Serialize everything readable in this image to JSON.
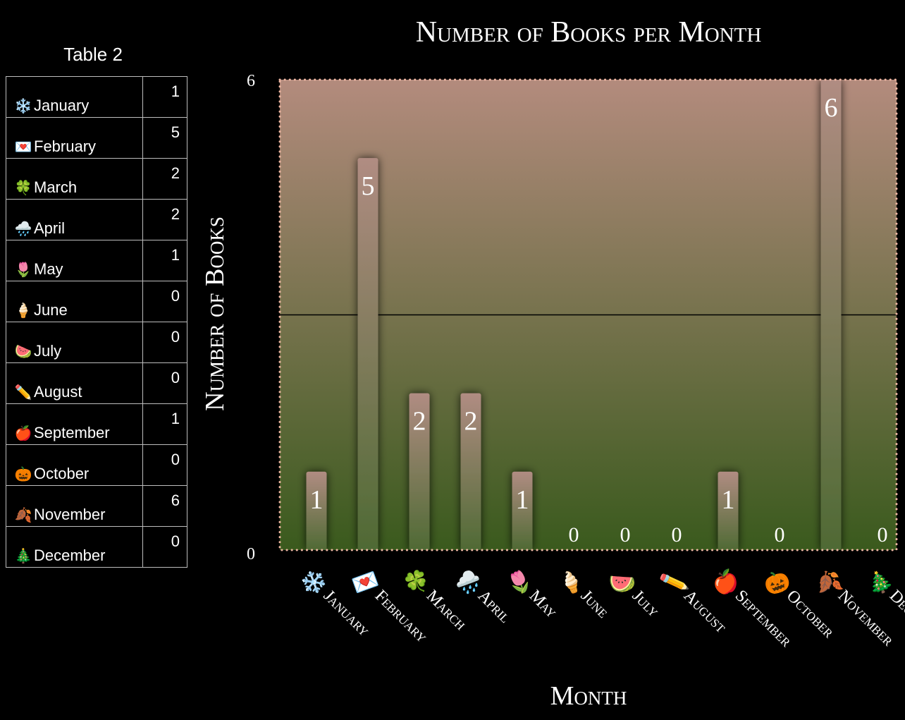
{
  "table": {
    "title": "Table 2",
    "rows": [
      {
        "icon": "snowflake-icon",
        "emoji": "❄️",
        "month": "January",
        "value": "1"
      },
      {
        "icon": "love-letter-icon",
        "emoji": "💌",
        "month": "February",
        "value": "5"
      },
      {
        "icon": "four-leaf-clover-icon",
        "emoji": "🍀",
        "month": "March",
        "value": "2"
      },
      {
        "icon": "rain-cloud-icon",
        "emoji": "🌧️",
        "month": "April",
        "value": "2"
      },
      {
        "icon": "tulip-icon",
        "emoji": "🌷",
        "month": "May",
        "value": "1"
      },
      {
        "icon": "ice-cream-icon",
        "emoji": "🍦",
        "month": "June",
        "value": "0"
      },
      {
        "icon": "watermelon-icon",
        "emoji": "🍉",
        "month": "July",
        "value": "0"
      },
      {
        "icon": "pencil-icon",
        "emoji": "✏️",
        "month": "August",
        "value": "0"
      },
      {
        "icon": "apple-icon",
        "emoji": "🍎",
        "month": "September",
        "value": "1"
      },
      {
        "icon": "jack-o-lantern-icon",
        "emoji": "🎃",
        "month": "October",
        "value": "0"
      },
      {
        "icon": "fallen-leaf-icon",
        "emoji": "🍂",
        "month": "November",
        "value": "6"
      },
      {
        "icon": "christmas-tree-icon",
        "emoji": "🎄",
        "month": "December",
        "value": "0"
      }
    ]
  },
  "chart_data": {
    "type": "bar",
    "title": "Number of Books per Month",
    "xlabel": "Month",
    "ylabel": "Number of Books",
    "categories": [
      "January",
      "February",
      "March",
      "April",
      "May",
      "June",
      "July",
      "August",
      "September",
      "October",
      "November",
      "December"
    ],
    "category_emojis": [
      "❄️",
      "💌",
      "🍀",
      "🌧️",
      "🌷",
      "🍦",
      "🍉",
      "✏️",
      "🍎",
      "🎃",
      "🍂",
      "🎄"
    ],
    "values": [
      1,
      5,
      2,
      2,
      1,
      0,
      0,
      0,
      1,
      0,
      6,
      0
    ],
    "ylim": [
      0,
      6
    ],
    "y_tick_labels": [
      "0",
      "6"
    ],
    "gridlines": [
      3
    ],
    "legend": "none",
    "colors": {
      "background_top": "#b38b7d",
      "background_bottom": "#3a5a1d",
      "bar_top": "#b08c82",
      "bar_bottom": "#4f6a34",
      "border_dots": "#f0b8a4",
      "gridline": "#000000"
    }
  }
}
